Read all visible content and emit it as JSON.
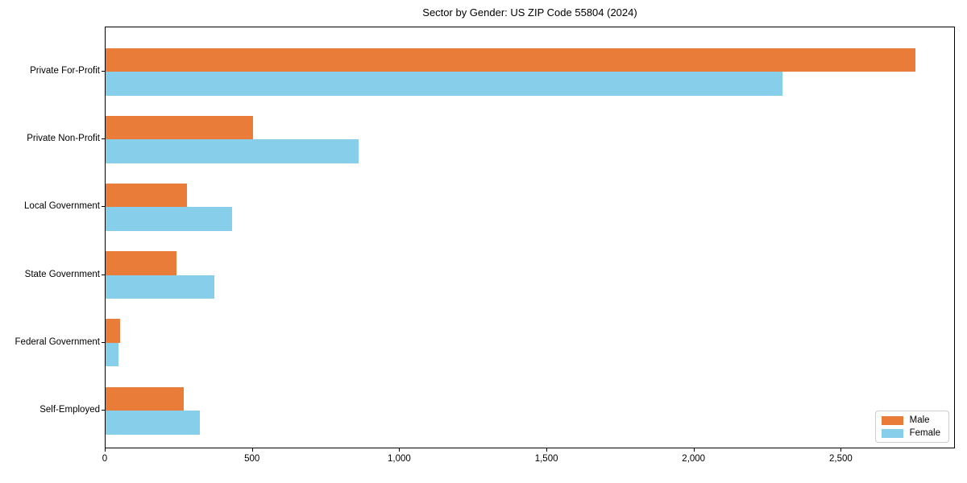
{
  "title": "Sector by Gender: US ZIP Code 55804 (2024)",
  "colors": {
    "male": "#E87C38",
    "female": "#87CEEB",
    "axis": "#000000",
    "legend_border": "#CCCCCC",
    "background": "#FFFFFF"
  },
  "legend": {
    "position": "lower right",
    "items": [
      {
        "label": "Male",
        "color": "#E87C38"
      },
      {
        "label": "Female",
        "color": "#87CEEB"
      }
    ]
  },
  "chart_data": {
    "type": "bar",
    "orientation": "horizontal",
    "title": "Sector by Gender: US ZIP Code 55804 (2024)",
    "categories": [
      "Private For-Profit",
      "Private Non-Profit",
      "Local Government",
      "State Government",
      "Federal Government",
      "Self-Employed"
    ],
    "series": [
      {
        "name": "Male",
        "color": "#E87C38",
        "values": [
          2750,
          500,
          275,
          240,
          50,
          265
        ]
      },
      {
        "name": "Female",
        "color": "#87CEEB",
        "values": [
          2300,
          860,
          430,
          370,
          45,
          320
        ]
      }
    ],
    "xlabel": "",
    "ylabel": "",
    "xlim": [
      0,
      2887.5
    ],
    "xticks": [
      0,
      500,
      1000,
      1500,
      2000,
      2500
    ],
    "xtick_labels": [
      "0",
      "500",
      "1,000",
      "1,500",
      "2,000",
      "2,500"
    ],
    "grid": false,
    "legend_position": "lower right"
  }
}
